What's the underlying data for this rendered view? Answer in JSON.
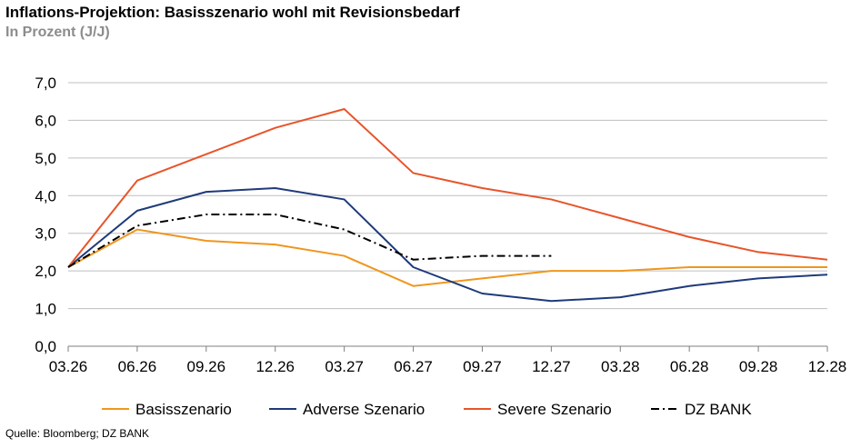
{
  "title": "Inflations-Projektion: Basisszenario wohl mit Revisionsbedarf",
  "subtitle": "In Prozent (J/J)",
  "source": "Quelle: Bloomberg; DZ BANK",
  "chart_data": {
    "type": "line",
    "title": "Inflations-Projektion: Basisszenario wohl mit Revisionsbedarf",
    "subtitle": "In Prozent (J/J)",
    "xlabel": "",
    "ylabel": "",
    "categories": [
      "03.26",
      "06.26",
      "09.26",
      "12.26",
      "03.27",
      "06.27",
      "09.27",
      "12.27",
      "03.28",
      "06.28",
      "09.28",
      "12.28"
    ],
    "y_ticks": [
      "0,0",
      "1,0",
      "2,0",
      "3,0",
      "4,0",
      "5,0",
      "6,0",
      "7,0"
    ],
    "ylim": [
      0,
      7
    ],
    "grid": "horizontal",
    "legend_position": "bottom",
    "series": [
      {
        "name": "Basisszenario",
        "color": "#f0961e",
        "dash": "solid",
        "values": [
          2.1,
          3.1,
          2.8,
          2.7,
          2.4,
          1.6,
          1.8,
          2.0,
          2.0,
          2.1,
          2.1,
          2.1
        ]
      },
      {
        "name": "Adverse Szenario",
        "color": "#1f3a7a",
        "dash": "solid",
        "values": [
          2.1,
          3.6,
          4.1,
          4.2,
          3.9,
          2.1,
          1.4,
          1.2,
          1.3,
          1.6,
          1.8,
          1.9
        ]
      },
      {
        "name": "Severe Szenario",
        "color": "#e8542a",
        "dash": "solid",
        "values": [
          2.1,
          4.4,
          5.1,
          5.8,
          6.3,
          4.6,
          4.2,
          3.9,
          3.4,
          2.9,
          2.5,
          2.3
        ]
      },
      {
        "name": "DZ BANK",
        "color": "#000000",
        "dash": "dashdot",
        "values": [
          2.1,
          3.2,
          3.5,
          3.5,
          3.1,
          2.3,
          2.4,
          2.4,
          null,
          null,
          null,
          null
        ]
      }
    ]
  }
}
